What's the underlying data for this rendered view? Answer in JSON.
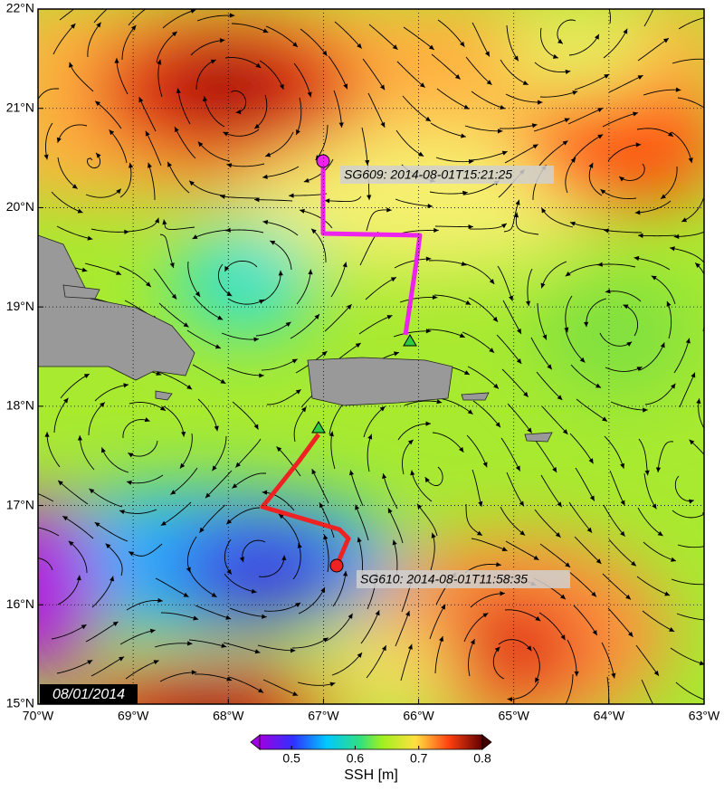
{
  "map": {
    "xlim": [
      -70,
      -63
    ],
    "ylim": [
      15,
      22
    ],
    "xticks": [
      {
        "value": -70,
        "label": "70°W"
      },
      {
        "value": -69,
        "label": "69°W"
      },
      {
        "value": -68,
        "label": "68°W"
      },
      {
        "value": -67,
        "label": "67°W"
      },
      {
        "value": -66,
        "label": "66°W"
      },
      {
        "value": -65,
        "label": "65°W"
      },
      {
        "value": -64,
        "label": "64°W"
      },
      {
        "value": -63,
        "label": "63°W"
      }
    ],
    "yticks": [
      {
        "value": 15,
        "label": "15°N"
      },
      {
        "value": 16,
        "label": "16°N"
      },
      {
        "value": 17,
        "label": "17°N"
      },
      {
        "value": 18,
        "label": "18°N"
      },
      {
        "value": 19,
        "label": "19°N"
      },
      {
        "value": 20,
        "label": "20°N"
      },
      {
        "value": 21,
        "label": "21°N"
      },
      {
        "value": 22,
        "label": "22°N"
      }
    ],
    "grid": true,
    "date": "08/01/2014",
    "gliders": [
      {
        "label": "SG609: 2014-08-01T15:21:25",
        "color": "#ee22ee"
      },
      {
        "label": "SG610: 2014-08-01T11:58:35",
        "color": "#ee2222"
      }
    ]
  },
  "colorbar": {
    "label": "SSH [m]",
    "lim": [
      0.45,
      0.8
    ],
    "ticks": [
      0.5,
      0.6,
      0.7,
      0.8
    ]
  }
}
